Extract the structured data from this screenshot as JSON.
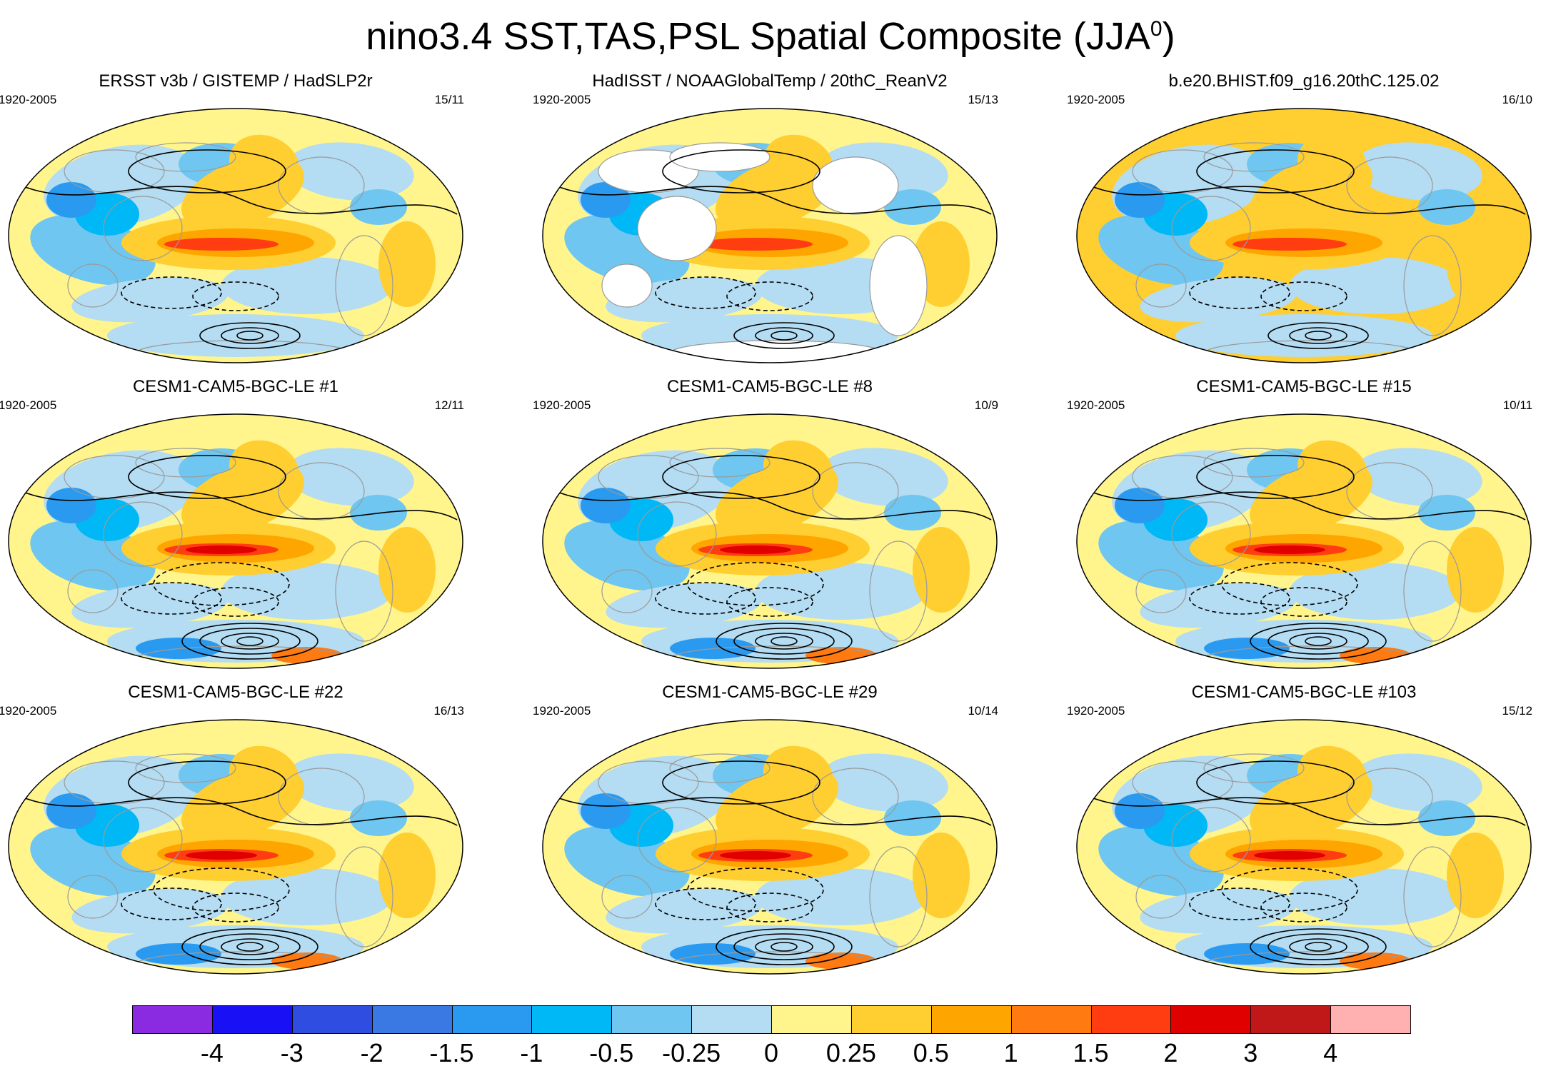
{
  "title": {
    "main": "nino3.4 SST,TAS,PSL Spatial Composite (JJA",
    "superscript": "0",
    "close": ")"
  },
  "panels": [
    {
      "title": "ERSST v3b / GISTEMP / HadSLP2r",
      "period": "1920-2005",
      "count": "15/11"
    },
    {
      "title": "HadISST / NOAAGlobalTemp / 20thC_ReanV2",
      "period": "1920-2005",
      "count": "15/13"
    },
    {
      "title": "b.e20.BHIST.f09_g16.20thC.125.02",
      "period": "1920-2005",
      "count": "16/10"
    },
    {
      "title": "CESM1-CAM5-BGC-LE #1",
      "period": "1920-2005",
      "count": "12/11"
    },
    {
      "title": "CESM1-CAM5-BGC-LE #8",
      "period": "1920-2005",
      "count": "10/9"
    },
    {
      "title": "CESM1-CAM5-BGC-LE #15",
      "period": "1920-2005",
      "count": "10/11"
    },
    {
      "title": "CESM1-CAM5-BGC-LE #22",
      "period": "1920-2005",
      "count": "16/13"
    },
    {
      "title": "CESM1-CAM5-BGC-LE #29",
      "period": "1920-2005",
      "count": "10/14"
    },
    {
      "title": "CESM1-CAM5-BGC-LE #103",
      "period": "1920-2005",
      "count": "15/12"
    }
  ],
  "colorbar": {
    "labels": [
      "-4",
      "-3",
      "-2",
      "-1.5",
      "-1",
      "-0.5",
      "-0.25",
      "0",
      "0.25",
      "0.5",
      "1",
      "1.5",
      "2",
      "3",
      "4"
    ],
    "colors": [
      "#8a2be2",
      "#1a10f5",
      "#2f4de0",
      "#3a79e4",
      "#2a9af0",
      "#00b8f5",
      "#6fc6f0",
      "#b4dcf2",
      "#fff58c",
      "#ffce30",
      "#ffa500",
      "#ff7a10",
      "#ff3d10",
      "#e00000",
      "#c01818",
      "#ffb0b0"
    ]
  }
}
